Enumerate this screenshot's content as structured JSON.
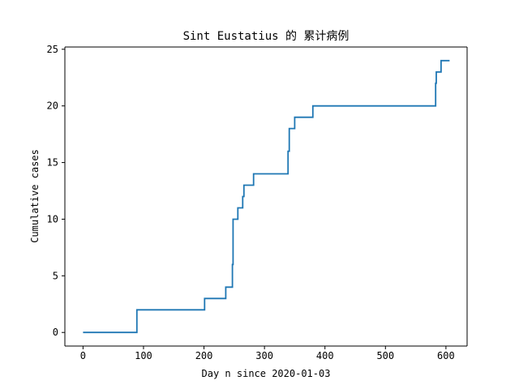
{
  "chart_data": {
    "type": "line",
    "title": "Sint Eustatius 的 累计病例",
    "xlabel": "Day n since 2020-01-03",
    "ylabel": "Cumulative cases",
    "xlim": [
      -30,
      635
    ],
    "ylim": [
      -1.2,
      25.2
    ],
    "xticks": [
      0,
      100,
      200,
      300,
      400,
      500,
      600
    ],
    "yticks": [
      0,
      5,
      10,
      15,
      20,
      25
    ],
    "grid": false,
    "series": [
      {
        "color": "#1f77b4",
        "step": "post",
        "x": [
          0,
          89,
          201,
          236,
          247,
          248,
          251,
          256,
          264,
          266,
          282,
          339,
          341,
          350,
          380,
          583,
          584,
          586,
          592,
          606
        ],
        "y": [
          0,
          2,
          3,
          4,
          6,
          10,
          10,
          11,
          12,
          13,
          14,
          16,
          18,
          19,
          20,
          22,
          23,
          23,
          24,
          24
        ]
      }
    ]
  }
}
